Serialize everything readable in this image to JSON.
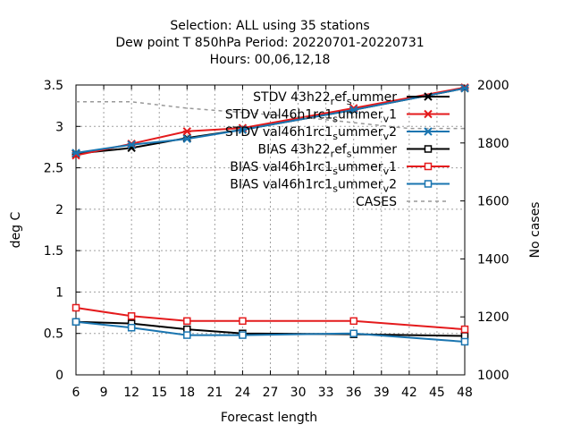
{
  "chart_data": {
    "type": "line",
    "title_lines": [
      "Selection: ALL using    35 stations",
      "Dew point T 850hPa   Period: 20220701-20220731",
      "Hours:  00,06,12,18"
    ],
    "xlabel": "Forecast length",
    "ylabel": "deg C",
    "y2label": "No cases",
    "xlim": [
      6,
      48
    ],
    "ylim": [
      0,
      3.5
    ],
    "y2lim": [
      1000,
      2000
    ],
    "x_ticks": [
      6,
      9,
      12,
      15,
      18,
      21,
      24,
      27,
      30,
      33,
      36,
      39,
      42,
      45,
      48
    ],
    "y_ticks": [
      "0",
      "0.5",
      "1",
      "1.5",
      "2",
      "2.5",
      "3",
      "3.5"
    ],
    "y2_ticks": [
      "1000",
      "1200",
      "1400",
      "1600",
      "1800",
      "2000"
    ],
    "grid": true,
    "legend_position": "top-right",
    "series": [
      {
        "name": "STDV 43h22_ref_summer",
        "axis": "y",
        "color": "#000000",
        "marker": "x",
        "x": [
          6,
          12,
          18,
          24,
          36,
          48
        ],
        "values": [
          2.67,
          2.74,
          2.86,
          2.96,
          3.2,
          3.46
        ]
      },
      {
        "name": "STDV val46h1rc1_summer_v1",
        "axis": "y",
        "color": "#e41a1c",
        "marker": "x",
        "x": [
          6,
          12,
          18,
          24,
          36,
          48
        ],
        "values": [
          2.65,
          2.79,
          2.94,
          2.98,
          3.22,
          3.47
        ]
      },
      {
        "name": "STDV val46h1rc1_summer_v2",
        "axis": "y",
        "color": "#1a75b0",
        "marker": "x",
        "x": [
          6,
          12,
          18,
          24,
          36,
          48
        ],
        "values": [
          2.68,
          2.78,
          2.85,
          2.96,
          3.2,
          3.46
        ]
      },
      {
        "name": "BIAS 43h22_ref_summer",
        "axis": "y",
        "color": "#000000",
        "marker": "square",
        "x": [
          6,
          12,
          18,
          24,
          36,
          48
        ],
        "values": [
          0.64,
          0.62,
          0.55,
          0.5,
          0.49,
          0.47
        ]
      },
      {
        "name": "BIAS val46h1rc1_summer_v1",
        "axis": "y",
        "color": "#e41a1c",
        "marker": "square",
        "x": [
          6,
          12,
          18,
          24,
          36,
          48
        ],
        "values": [
          0.81,
          0.71,
          0.65,
          0.65,
          0.65,
          0.55
        ]
      },
      {
        "name": "BIAS val46h1rc1_summer_v2",
        "axis": "y",
        "color": "#1a75b0",
        "marker": "square",
        "x": [
          6,
          12,
          18,
          24,
          36,
          48
        ],
        "values": [
          0.64,
          0.57,
          0.48,
          0.48,
          0.5,
          0.4
        ]
      },
      {
        "name": "CASES",
        "axis": "y2",
        "color": "#999999",
        "marker": "none",
        "dashed": true,
        "x": [
          6,
          12,
          18,
          24,
          30,
          36,
          42,
          48
        ],
        "values": [
          1942,
          1942,
          1920,
          1905,
          1890,
          1870,
          1850,
          1850
        ]
      }
    ],
    "legend": [
      {
        "label": "STDV 43h22",
        "sub": "r",
        "rest": "ef",
        "sub2": "s",
        "rest2": "ummer"
      },
      {
        "label": "STDV val46h1rc1",
        "sub": "s",
        "rest": "ummer",
        "sub2": "v",
        "rest2": "1"
      },
      {
        "label": "STDV val46h1rc1",
        "sub": "s",
        "rest": "ummer",
        "sub2": "v",
        "rest2": "2"
      },
      {
        "label": "BIAS 43h22",
        "sub": "r",
        "rest": "ef",
        "sub2": "s",
        "rest2": "ummer"
      },
      {
        "label": "BIAS val46h1rc1",
        "sub": "s",
        "rest": "ummer",
        "sub2": "v",
        "rest2": "1"
      },
      {
        "label": "BIAS val46h1rc1",
        "sub": "s",
        "rest": "ummer",
        "sub2": "v",
        "rest2": "2"
      },
      {
        "label": "CASES",
        "sub": "",
        "rest": "",
        "sub2": "",
        "rest2": ""
      }
    ]
  }
}
